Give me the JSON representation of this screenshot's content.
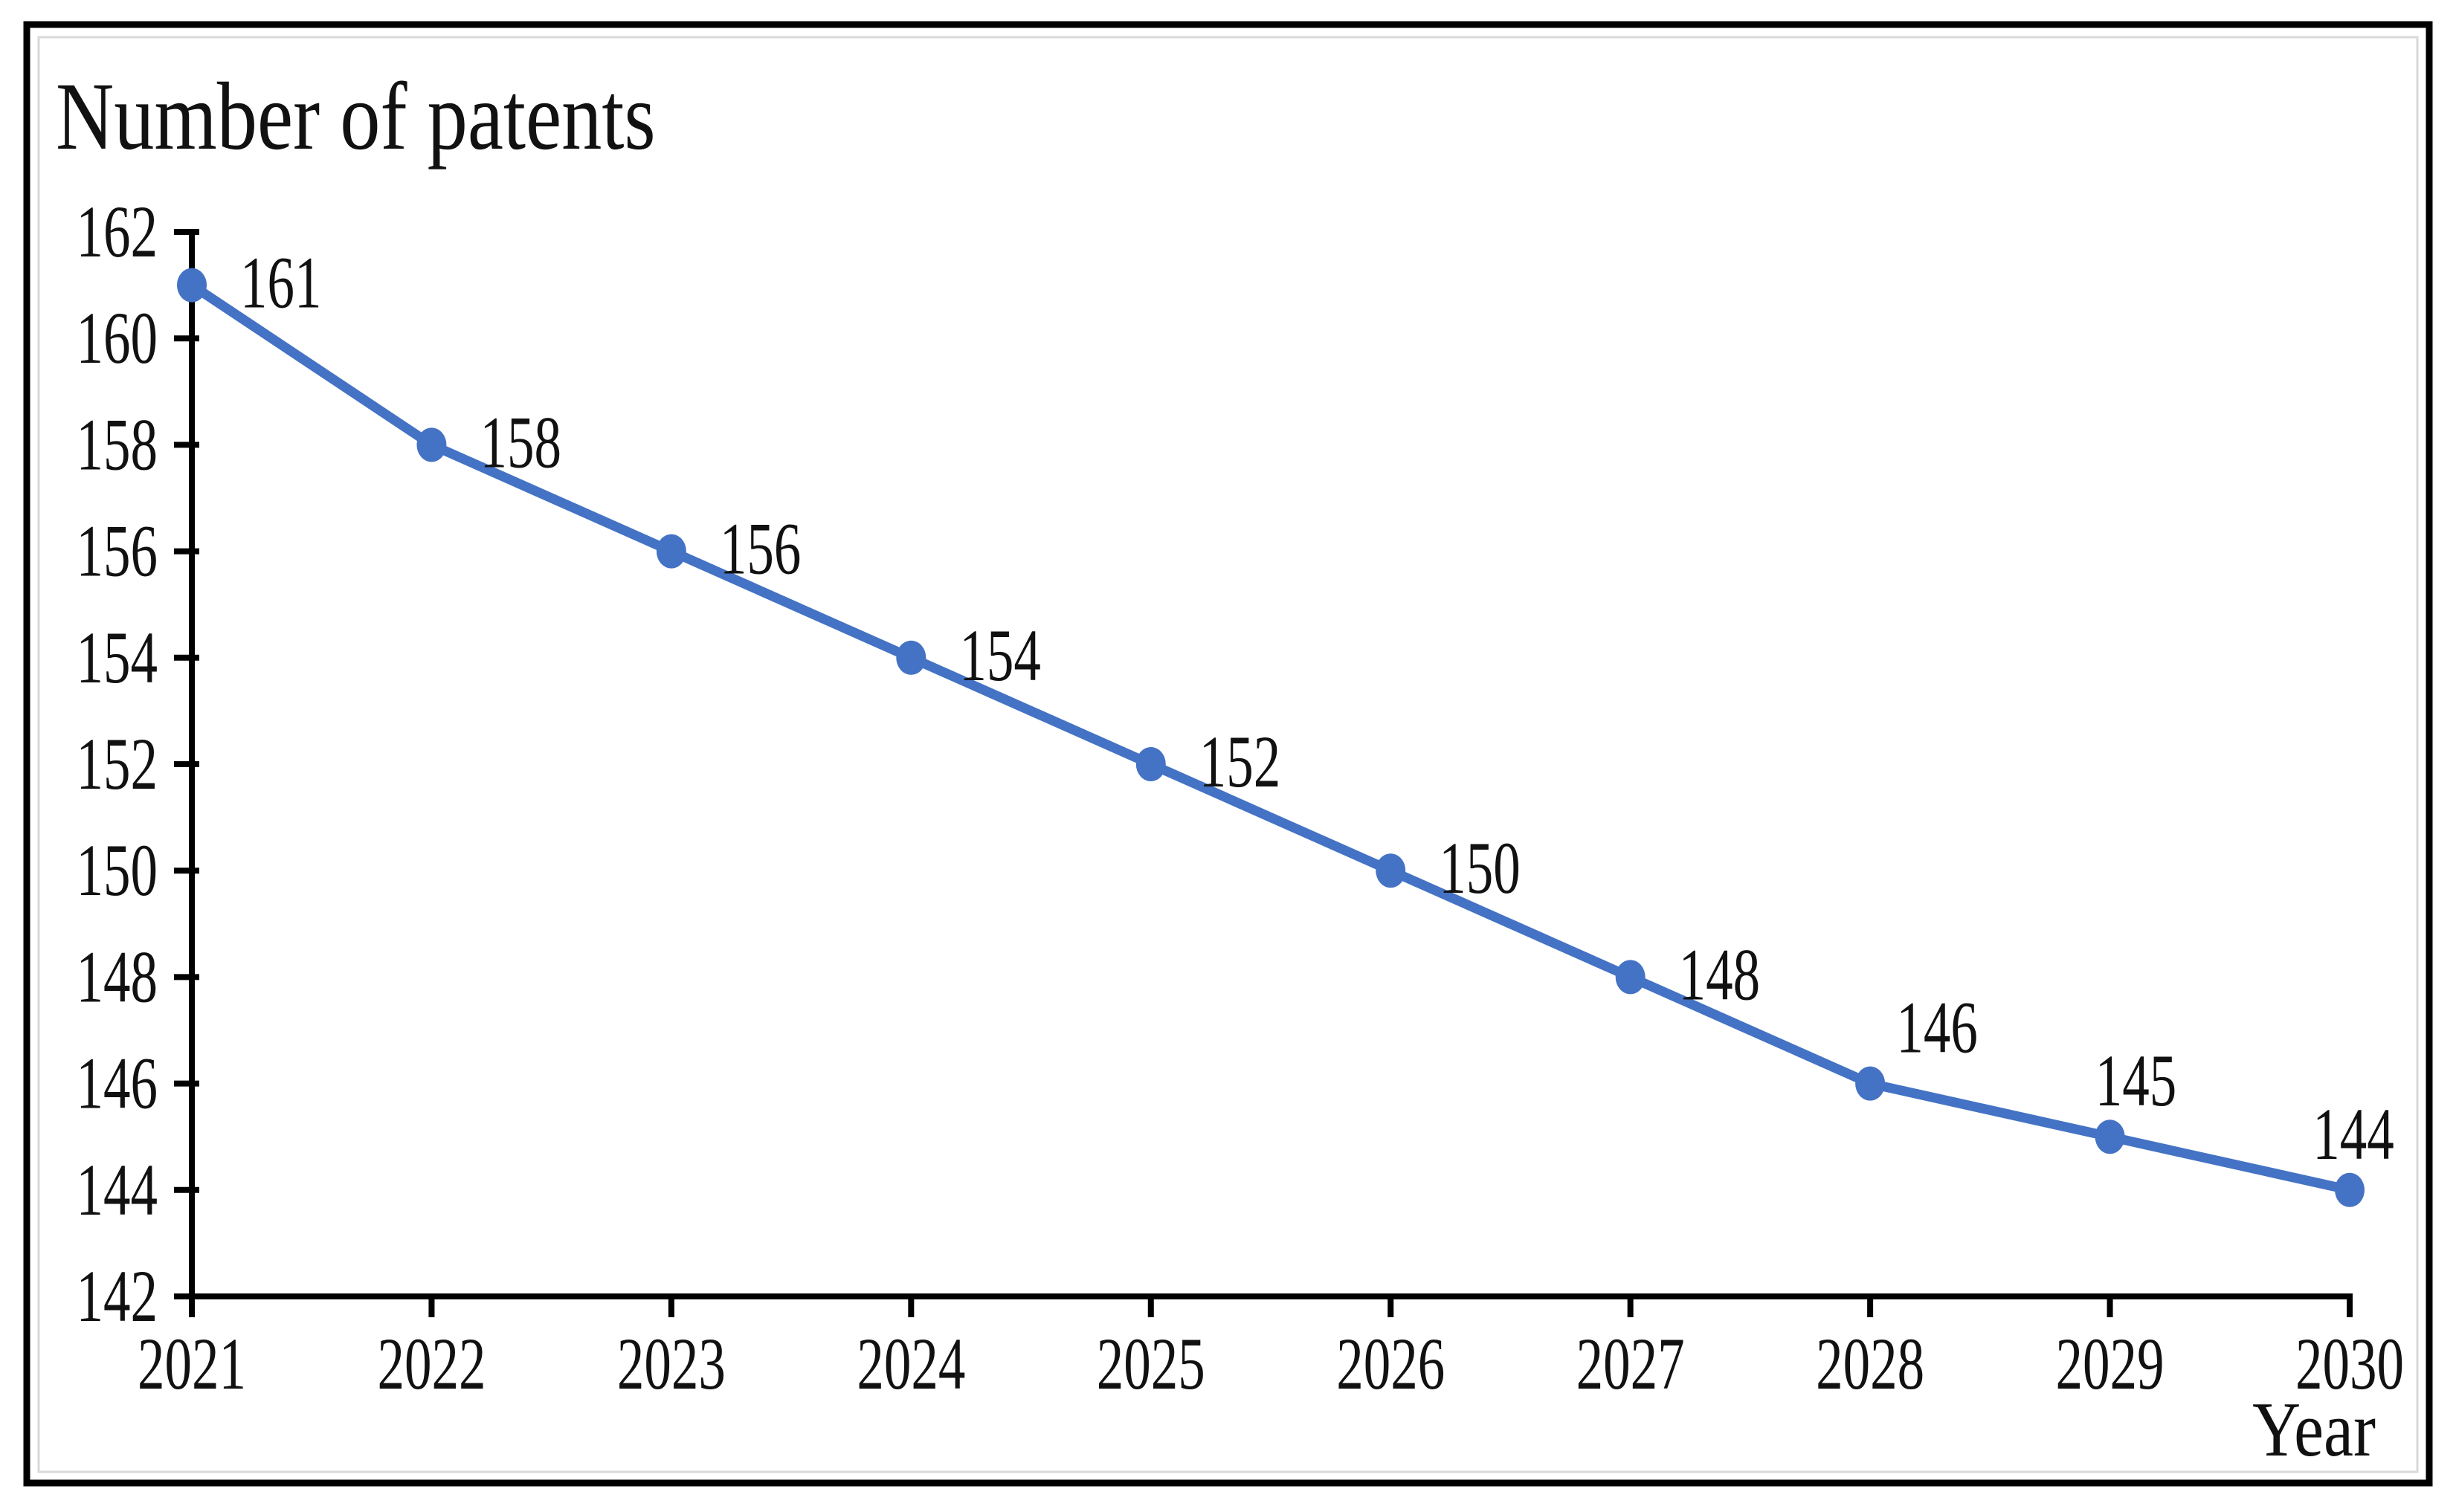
{
  "chart_data": {
    "type": "line",
    "title": "Number of patents",
    "xlabel": "Year",
    "ylabel": "",
    "x": [
      2021,
      2022,
      2023,
      2024,
      2025,
      2026,
      2027,
      2028,
      2029,
      2030
    ],
    "x_tick_labels": [
      "2021",
      "2022",
      "2023",
      "2024",
      "2025",
      "2026",
      "2027",
      "2028",
      "2029",
      "2030"
    ],
    "values": [
      161,
      158,
      156,
      154,
      152,
      150,
      148,
      146,
      145,
      144
    ],
    "ylim": [
      142,
      162
    ],
    "yticks": [
      162,
      160,
      158,
      156,
      154,
      152,
      150,
      148,
      146,
      144,
      142
    ],
    "y_tick_labels": [
      "162",
      "160",
      "158",
      "156",
      "154",
      "152",
      "150",
      "148",
      "146",
      "144",
      "142"
    ],
    "grid": "off",
    "legend": "none",
    "marker": "circle",
    "data_labels": [
      {
        "text": "161",
        "position": "right"
      },
      {
        "text": "158",
        "position": "right"
      },
      {
        "text": "156",
        "position": "right"
      },
      {
        "text": "154",
        "position": "right"
      },
      {
        "text": "152",
        "position": "right"
      },
      {
        "text": "150",
        "position": "right"
      },
      {
        "text": "148",
        "position": "right"
      },
      {
        "text": "146",
        "position": "above",
        "dx": 90
      },
      {
        "text": "145",
        "position": "above",
        "dx": 35
      },
      {
        "text": "144",
        "position": "above",
        "dx": 5
      }
    ],
    "colors": {
      "line": "#4472C4",
      "marker": "#4472C4",
      "text": "#111111",
      "axis": "#000000",
      "frame_border": "#000000",
      "inner_border": "#d9d9d9",
      "background": "#ffffff"
    }
  }
}
